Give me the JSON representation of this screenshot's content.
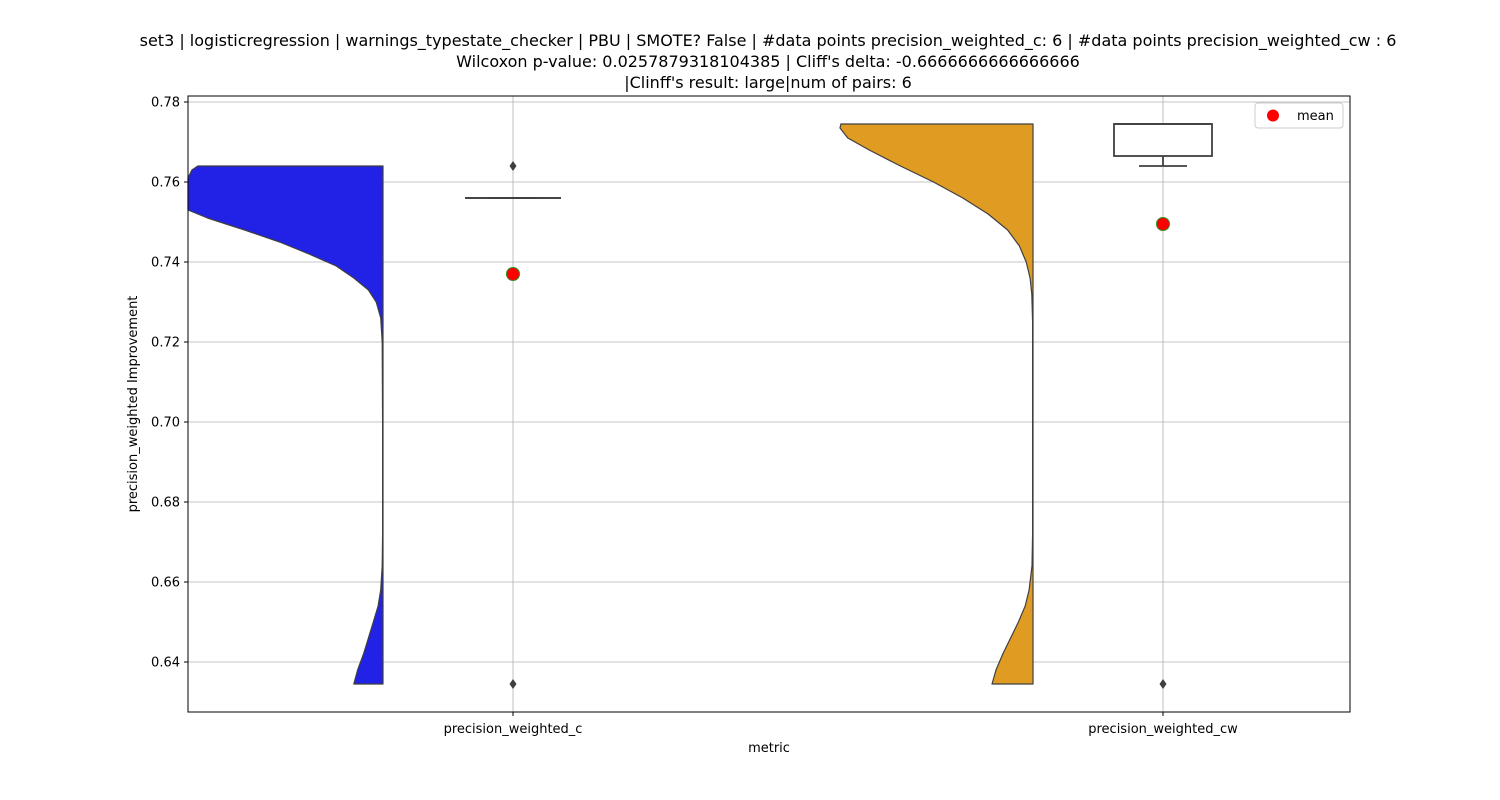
{
  "chart_data": {
    "type": "violin",
    "title": [
      "set3 | logisticregression | warnings_typestate_checker | PBU | SMOTE? False | #data points precision_weighted_c: 6 | #data points precision_weighted_cw : 6",
      "Wilcoxon p-value: 0.0257879318104385 | Cliff's delta: -0.6666666666666666",
      "|Clinff's result: large|num of pairs: 6"
    ],
    "xlabel": "metric",
    "ylabel": "precision_weighted Improvement",
    "categories": [
      "precision_weighted_c",
      "precision_weighted_cw"
    ],
    "ylim": [
      0.6275,
      0.7815
    ],
    "yticks": [
      0.64,
      0.66,
      0.68,
      0.7,
      0.72,
      0.74,
      0.76,
      0.78
    ],
    "ytick_labels": [
      "0.64",
      "0.66",
      "0.68",
      "0.70",
      "0.72",
      "0.74",
      "0.76",
      "0.78"
    ],
    "grid": true,
    "legend": {
      "position": "top-right",
      "entries": [
        {
          "label": "mean",
          "color": "#ff0000"
        }
      ]
    },
    "series": [
      {
        "category": "precision_weighted_c",
        "color": "#2222e6",
        "violin": {
          "ymin": 0.6345,
          "ymax": 0.764,
          "profile": [
            [
              0.6345,
              0.15
            ],
            [
              0.638,
              0.13
            ],
            [
              0.642,
              0.1
            ],
            [
              0.646,
              0.075
            ],
            [
              0.65,
              0.05
            ],
            [
              0.654,
              0.025
            ],
            [
              0.658,
              0.012
            ],
            [
              0.664,
              0.004
            ],
            [
              0.672,
              0.002
            ],
            [
              0.7,
              0.002
            ],
            [
              0.72,
              0.004
            ],
            [
              0.726,
              0.012
            ],
            [
              0.73,
              0.035
            ],
            [
              0.733,
              0.075
            ],
            [
              0.736,
              0.15
            ],
            [
              0.739,
              0.24
            ],
            [
              0.742,
              0.38
            ],
            [
              0.745,
              0.53
            ],
            [
              0.748,
              0.71
            ],
            [
              0.751,
              0.9
            ],
            [
              0.753,
              1.0
            ],
            [
              0.755,
              1.0
            ],
            [
              0.758,
              1.0
            ],
            [
              0.761,
              1.0
            ],
            [
              0.763,
              0.98
            ],
            [
              0.764,
              0.95
            ]
          ]
        },
        "box": {
          "q1": 0.756,
          "median": 0.756,
          "q3": 0.756,
          "whisker_low": 0.756,
          "whisker_high": 0.756
        },
        "outliers": [
          0.764,
          0.6345
        ],
        "mean": 0.737
      },
      {
        "category": "precision_weighted_cw",
        "color": "#e09c22",
        "violin": {
          "ymin": 0.6345,
          "ymax": 0.7745,
          "profile": [
            [
              0.6345,
              0.21
            ],
            [
              0.638,
              0.19
            ],
            [
              0.642,
              0.155
            ],
            [
              0.646,
              0.115
            ],
            [
              0.65,
              0.075
            ],
            [
              0.654,
              0.04
            ],
            [
              0.658,
              0.02
            ],
            [
              0.664,
              0.005
            ],
            [
              0.672,
              0.002
            ],
            [
              0.7,
              0.002
            ],
            [
              0.725,
              0.002
            ],
            [
              0.732,
              0.006
            ],
            [
              0.736,
              0.015
            ],
            [
              0.74,
              0.035
            ],
            [
              0.744,
              0.07
            ],
            [
              0.748,
              0.13
            ],
            [
              0.752,
              0.23
            ],
            [
              0.756,
              0.36
            ],
            [
              0.76,
              0.51
            ],
            [
              0.764,
              0.68
            ],
            [
              0.768,
              0.84
            ],
            [
              0.771,
              0.95
            ],
            [
              0.7735,
              0.99
            ],
            [
              0.7745,
              0.985
            ]
          ]
        },
        "box": {
          "q1": 0.7665,
          "median": 0.7745,
          "q3": 0.7745,
          "whisker_low": 0.764,
          "whisker_high": 0.7745
        },
        "outliers": [
          0.6345
        ],
        "mean": 0.7495
      }
    ]
  }
}
